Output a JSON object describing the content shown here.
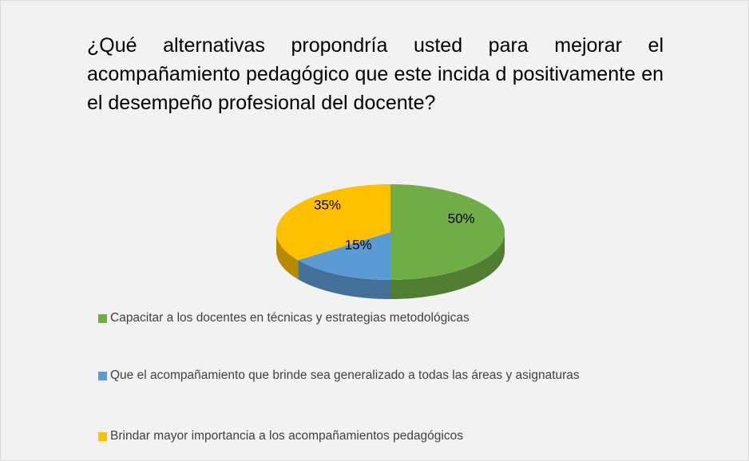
{
  "chart_data": {
    "type": "pie3d",
    "title": "¿Qué alternativas propondría usted para mejorar el acompañamiento pedagógico que este incida d positivamente en el desempeño profesional del docente?",
    "categories": [
      "Capacitar a los docentes en técnicas y estrategias metodológicas",
      "Que el acompañamiento que brinde sea generalizado a todas las áreas y asignaturas",
      "Brindar mayor importancia a los acompañamientos pedagógicos"
    ],
    "values": [
      50,
      15,
      35
    ],
    "value_labels": [
      "50%",
      "15%",
      "35%"
    ],
    "colors": [
      "#70ad47",
      "#5b9bd5",
      "#ffc000"
    ]
  }
}
